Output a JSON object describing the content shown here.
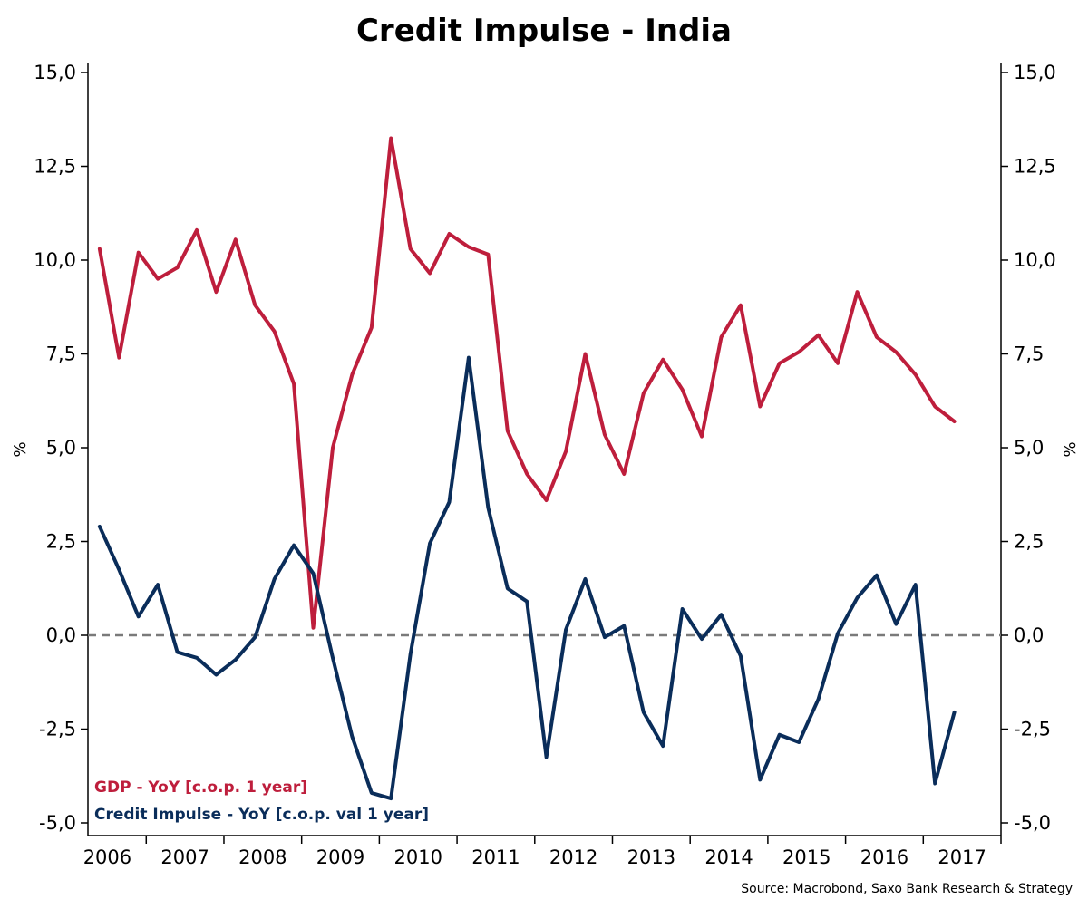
{
  "chart_data": {
    "type": "line",
    "title": "Credit Impulse - India",
    "ylabel_left": "%",
    "ylabel_right": "%",
    "ylim": [
      -5.0,
      15.0
    ],
    "yticks": [
      "15,0",
      "12,5",
      "10,0",
      "7,5",
      "5,0",
      "2,5",
      "0,0",
      "-2,5",
      "-5,0"
    ],
    "ytick_values": [
      15,
      12.5,
      10,
      7.5,
      5,
      2.5,
      0,
      -2.5,
      -5
    ],
    "xlim": [
      2005.75,
      2017.5
    ],
    "xtick_labels": [
      "2006",
      "2007",
      "2008",
      "2009",
      "2010",
      "2011",
      "2012",
      "2013",
      "2014",
      "2015",
      "2016",
      "2017"
    ],
    "xtick_years": [
      2006,
      2007,
      2008,
      2009,
      2010,
      2011,
      2012,
      2013,
      2014,
      2015,
      2016,
      2017
    ],
    "zero_line": true,
    "grid": false,
    "legend_position": "bottom-left",
    "series": [
      {
        "name": "GDP - YoY [c.o.p. 1 year]",
        "color": "#be1e3c",
        "points": [
          [
            2005.9,
            10.3
          ],
          [
            2006.15,
            7.4
          ],
          [
            2006.4,
            10.2
          ],
          [
            2006.65,
            9.5
          ],
          [
            2006.9,
            9.8
          ],
          [
            2007.15,
            10.8
          ],
          [
            2007.4,
            9.15
          ],
          [
            2007.65,
            10.55
          ],
          [
            2007.9,
            8.8
          ],
          [
            2008.15,
            8.1
          ],
          [
            2008.4,
            6.7
          ],
          [
            2008.65,
            0.2
          ],
          [
            2008.9,
            5.0
          ],
          [
            2009.15,
            6.95
          ],
          [
            2009.4,
            8.2
          ],
          [
            2009.65,
            13.25
          ],
          [
            2009.9,
            10.3
          ],
          [
            2010.15,
            9.65
          ],
          [
            2010.4,
            10.7
          ],
          [
            2010.65,
            10.35
          ],
          [
            2010.9,
            10.15
          ],
          [
            2011.15,
            5.45
          ],
          [
            2011.4,
            4.3
          ],
          [
            2011.65,
            3.6
          ],
          [
            2011.9,
            4.9
          ],
          [
            2012.15,
            7.5
          ],
          [
            2012.4,
            5.35
          ],
          [
            2012.65,
            4.3
          ],
          [
            2012.9,
            6.45
          ],
          [
            2013.15,
            7.35
          ],
          [
            2013.4,
            6.55
          ],
          [
            2013.65,
            5.3
          ],
          [
            2013.9,
            7.95
          ],
          [
            2014.15,
            8.8
          ],
          [
            2014.4,
            6.1
          ],
          [
            2014.65,
            7.25
          ],
          [
            2014.9,
            7.55
          ],
          [
            2015.15,
            8.0
          ],
          [
            2015.4,
            7.25
          ],
          [
            2015.65,
            9.15
          ],
          [
            2015.9,
            7.95
          ],
          [
            2016.15,
            7.55
          ],
          [
            2016.4,
            6.95
          ],
          [
            2016.65,
            6.1
          ],
          [
            2016.9,
            5.7
          ]
        ]
      },
      {
        "name": "Credit Impulse - YoY [c.o.p. val 1 year]",
        "color": "#0a2d5a",
        "points": [
          [
            2005.9,
            2.9
          ],
          [
            2006.15,
            1.75
          ],
          [
            2006.4,
            0.5
          ],
          [
            2006.65,
            1.35
          ],
          [
            2006.9,
            -0.45
          ],
          [
            2007.15,
            -0.6
          ],
          [
            2007.4,
            -1.05
          ],
          [
            2007.65,
            -0.65
          ],
          [
            2007.9,
            -0.05
          ],
          [
            2008.15,
            1.5
          ],
          [
            2008.4,
            2.4
          ],
          [
            2008.65,
            1.65
          ],
          [
            2008.9,
            -0.6
          ],
          [
            2009.15,
            -2.7
          ],
          [
            2009.4,
            -4.2
          ],
          [
            2009.65,
            -4.35
          ],
          [
            2009.9,
            -0.5
          ],
          [
            2010.15,
            2.45
          ],
          [
            2010.4,
            3.55
          ],
          [
            2010.65,
            7.4
          ],
          [
            2010.9,
            3.4
          ],
          [
            2011.15,
            1.25
          ],
          [
            2011.4,
            0.9
          ],
          [
            2011.65,
            -3.25
          ],
          [
            2011.9,
            0.15
          ],
          [
            2012.15,
            1.5
          ],
          [
            2012.4,
            -0.05
          ],
          [
            2012.65,
            0.25
          ],
          [
            2012.9,
            -2.05
          ],
          [
            2013.15,
            -2.95
          ],
          [
            2013.4,
            0.7
          ],
          [
            2013.65,
            -0.1
          ],
          [
            2013.9,
            0.55
          ],
          [
            2014.15,
            -0.55
          ],
          [
            2014.4,
            -3.85
          ],
          [
            2014.65,
            -2.65
          ],
          [
            2014.9,
            -2.85
          ],
          [
            2015.15,
            -1.7
          ],
          [
            2015.4,
            0.05
          ],
          [
            2015.65,
            1.0
          ],
          [
            2015.9,
            1.6
          ],
          [
            2016.15,
            0.3
          ],
          [
            2016.4,
            1.35
          ],
          [
            2016.65,
            -3.95
          ],
          [
            2016.9,
            -2.05
          ]
        ]
      }
    ],
    "source": "Source: Macrobond, Saxo Bank Research & Strategy"
  }
}
